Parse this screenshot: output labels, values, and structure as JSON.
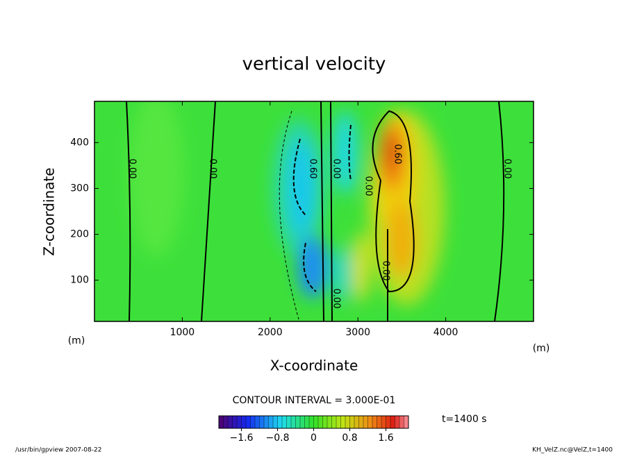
{
  "chart_data": {
    "type": "contour",
    "title": "vertical velocity",
    "x_label": "X-coordinate",
    "y_label": "Z-coordinate",
    "x_unit": "(m)",
    "y_unit": "(m)",
    "xlim": [
      0,
      5000
    ],
    "xticks": [
      1000,
      2000,
      3000,
      4000
    ],
    "ylim": [
      10,
      490
    ],
    "yticks": [
      100,
      200,
      300,
      400
    ],
    "contour_interval": "CONTOUR INTERVAL = 3.000E-01",
    "contour_labels": [
      "0.00",
      "0.00",
      "0.60",
      "0.00",
      "0.00",
      "0.60",
      "0.00",
      "0.00",
      "0.00"
    ],
    "colorbar": {
      "clim": [
        -2.1,
        2.1
      ],
      "ticks": [
        {
          "value": -1.6,
          "label": "−1.6"
        },
        {
          "value": -0.8,
          "label": "−0.8"
        },
        0,
        0.8,
        1.6
      ]
    },
    "time_label": "t=1400 s",
    "footer_left": "/usr/bin/gpview  2007-08-22",
    "footer_right": "KH_VelZ.nc@VelZ,t=1400"
  }
}
